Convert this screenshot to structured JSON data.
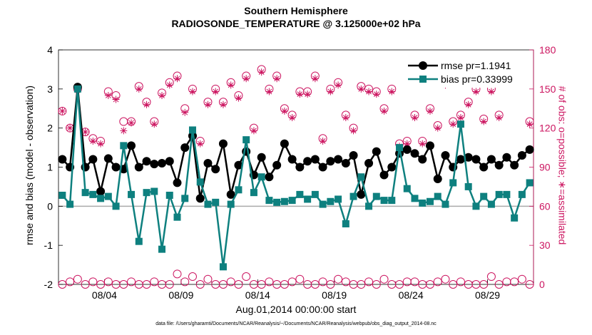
{
  "title_line1": "Southern Hemisphere",
  "title_line2": "RADIOSONDE_TEMPERATURE @ 3.125000e+02 hPa",
  "xlabel": "Aug.01,2014 00:00:00 start",
  "ylabel_left": "rmse and bias (model - observation)",
  "ylabel_right": "# of obs: o=possible; ∗=assimilated",
  "footnote": "data file: /Users/gharamti/Documents/NCAR/Reanalysis/~/Documents/NCAR/Reanalysis/webpub/obs_diag_output_2014-08.nc",
  "colors": {
    "rmse": "#000000",
    "bias": "#0e807f",
    "obs": "#cc1560",
    "zero_line": "#aaaaaa"
  },
  "chart_data": {
    "type": "line",
    "x_ticks": [
      "08/04",
      "08/09",
      "08/14",
      "08/19",
      "08/24",
      "08/29"
    ],
    "x_tick_days": [
      4,
      9,
      14,
      19,
      24,
      29
    ],
    "xlim": [
      1,
      32
    ],
    "y_left_ticks": [
      "-2",
      "-1",
      "0",
      "1",
      "2",
      "3",
      "4"
    ],
    "ylim_left": [
      -2,
      4
    ],
    "y_right_ticks": [
      "0",
      "30",
      "60",
      "90",
      "120",
      "150",
      "180"
    ],
    "ylim_right": [
      0,
      180
    ],
    "legend_location": "top-right",
    "series": [
      {
        "name": "rmse pr=1.1941",
        "axis": "left",
        "marker": "circle",
        "x": [
          1.25,
          1.75,
          2.25,
          2.75,
          3.25,
          3.75,
          4.25,
          4.75,
          5.25,
          5.75,
          6.25,
          6.75,
          7.25,
          7.75,
          8.25,
          8.75,
          9.25,
          9.75,
          10.25,
          10.75,
          11.25,
          11.75,
          12.25,
          12.75,
          13.25,
          13.75,
          14.25,
          14.75,
          15.25,
          15.75,
          16.25,
          16.75,
          17.25,
          17.75,
          18.25,
          18.75,
          19.25,
          19.75,
          20.25,
          20.75,
          21.25,
          21.75,
          22.25,
          22.75,
          23.25,
          23.75,
          24.25,
          24.75,
          25.25,
          25.75,
          26.25,
          26.75,
          27.25,
          27.75,
          28.25,
          28.75,
          29.25,
          29.75,
          30.25,
          30.75,
          31.25,
          31.75
        ],
        "y": [
          1.2,
          1.0,
          3.05,
          1.0,
          1.2,
          0.38,
          1.22,
          1.0,
          0.95,
          1.55,
          1.0,
          1.15,
          1.08,
          1.1,
          1.15,
          0.6,
          1.5,
          1.8,
          0.2,
          1.1,
          0.95,
          1.6,
          0.3,
          1.05,
          1.4,
          0.8,
          1.25,
          0.75,
          1.05,
          1.6,
          1.2,
          1.0,
          1.15,
          1.2,
          1.0,
          1.15,
          1.2,
          1.1,
          1.3,
          0.3,
          1.1,
          1.4,
          0.8,
          1.0,
          1.35,
          1.45,
          1.35,
          1.2,
          1.55,
          0.7,
          1.3,
          1.0,
          1.2,
          1.25,
          1.2,
          1.0,
          1.2,
          1.05,
          1.25,
          1.05,
          1.3,
          1.45
        ],
        "color": "#000000"
      },
      {
        "name": "bias pr=0.33999",
        "axis": "left",
        "marker": "square",
        "x": [
          1.25,
          1.75,
          2.25,
          2.75,
          3.25,
          3.75,
          4.25,
          4.75,
          5.25,
          5.75,
          6.25,
          6.75,
          7.25,
          7.75,
          8.25,
          8.75,
          9.25,
          9.75,
          10.25,
          10.75,
          11.25,
          11.75,
          12.25,
          12.75,
          13.25,
          13.75,
          14.25,
          14.75,
          15.25,
          15.75,
          16.25,
          16.75,
          17.25,
          17.75,
          18.25,
          18.75,
          19.25,
          19.75,
          20.25,
          20.75,
          21.25,
          21.75,
          22.25,
          22.75,
          23.25,
          23.75,
          24.25,
          24.75,
          25.25,
          25.75,
          26.25,
          26.75,
          27.25,
          27.75,
          28.25,
          28.75,
          29.25,
          29.75,
          30.25,
          30.75,
          31.25,
          31.75
        ],
        "y": [
          0.28,
          0.05,
          3.0,
          0.35,
          0.3,
          0.2,
          0.25,
          0.0,
          1.55,
          0.3,
          -0.9,
          0.35,
          0.38,
          -1.1,
          0.28,
          -0.28,
          0.2,
          1.95,
          0.62,
          0.05,
          0.1,
          -1.55,
          0.05,
          0.42,
          1.7,
          0.35,
          0.75,
          0.15,
          0.1,
          0.12,
          0.15,
          0.3,
          0.18,
          0.3,
          0.05,
          0.12,
          0.18,
          -0.45,
          0.25,
          0.75,
          0.0,
          0.25,
          0.15,
          0.15,
          1.5,
          0.45,
          0.2,
          0.08,
          0.12,
          0.25,
          0.05,
          0.6,
          2.1,
          0.5,
          0.0,
          0.25,
          0.05,
          0.3,
          0.3,
          -0.3,
          0.3,
          0.6
        ],
        "color": "#0e807f"
      },
      {
        "name": "possible",
        "axis": "right",
        "marker": "open-circle",
        "x": [
          1.25,
          1.75,
          2.25,
          2.75,
          3.25,
          3.75,
          4.25,
          4.75,
          5.25,
          5.75,
          6.25,
          6.75,
          7.25,
          7.75,
          8.25,
          8.75,
          9.25,
          9.75,
          10.25,
          10.75,
          11.25,
          11.75,
          12.25,
          12.75,
          13.25,
          13.75,
          14.25,
          14.75,
          15.25,
          15.75,
          16.25,
          16.75,
          17.25,
          17.75,
          18.25,
          18.75,
          19.25,
          19.75,
          20.25,
          20.75,
          21.25,
          21.75,
          22.25,
          22.75,
          23.25,
          23.75,
          24.25,
          24.75,
          25.25,
          25.75,
          26.25,
          26.75,
          27.25,
          27.75,
          28.25,
          28.75,
          29.25,
          29.75,
          30.25,
          30.75,
          31.25,
          31.75
        ],
        "y": [
          133,
          120,
          150,
          117,
          112,
          110,
          148,
          145,
          125,
          125,
          152,
          140,
          125,
          147,
          155,
          160,
          135,
          150,
          110,
          140,
          150,
          140,
          155,
          145,
          160,
          120,
          165,
          150,
          160,
          135,
          130,
          148,
          148,
          160,
          112,
          150,
          155,
          130,
          120,
          152,
          150,
          148,
          135,
          150,
          108,
          110,
          130,
          110,
          135,
          122,
          155,
          125,
          130,
          140,
          150,
          127,
          150,
          130,
          160,
          158,
          165,
          125
        ],
        "color": "#cc1560"
      },
      {
        "name": "assimilated",
        "axis": "right",
        "marker": "star",
        "x": [
          1.25,
          1.75,
          2.25,
          2.75,
          3.25,
          3.75,
          4.25,
          4.75,
          5.25,
          5.75,
          6.25,
          6.75,
          7.25,
          7.75,
          8.25,
          8.75,
          9.25,
          9.75,
          10.25,
          10.75,
          11.25,
          11.75,
          12.25,
          12.75,
          13.25,
          13.75,
          14.25,
          14.75,
          15.25,
          15.75,
          16.25,
          16.75,
          17.25,
          17.75,
          18.25,
          18.75,
          19.25,
          19.75,
          20.25,
          20.75,
          21.25,
          21.75,
          22.25,
          22.75,
          23.25,
          23.75,
          24.25,
          24.75,
          25.25,
          25.75,
          26.25,
          26.75,
          27.25,
          27.75,
          28.25,
          28.75,
          29.25,
          29.75,
          30.25,
          30.75,
          31.25,
          31.75
        ],
        "y": [
          133,
          120,
          150,
          117,
          110,
          108,
          145,
          142,
          118,
          124,
          150,
          138,
          123,
          145,
          153,
          158,
          132,
          148,
          108,
          138,
          148,
          138,
          153,
          143,
          158,
          118,
          163,
          148,
          158,
          133,
          128,
          146,
          146,
          158,
          110,
          148,
          153,
          128,
          118,
          150,
          148,
          146,
          133,
          148,
          106,
          108,
          128,
          108,
          133,
          120,
          153,
          123,
          128,
          138,
          148,
          125,
          148,
          128,
          158,
          156,
          163,
          123
        ],
        "color": "#cc1560"
      },
      {
        "name": "possible-bottom",
        "axis": "right",
        "marker": "open-circle",
        "x": [
          1.25,
          1.75,
          2.25,
          2.75,
          3.25,
          3.75,
          4.25,
          4.75,
          5.25,
          5.75,
          6.25,
          6.75,
          7.25,
          7.75,
          8.25,
          8.75,
          9.25,
          9.75,
          10.25,
          10.75,
          11.25,
          11.75,
          12.25,
          12.75,
          13.25,
          13.75,
          14.25,
          14.75,
          15.25,
          15.75,
          16.25,
          16.75,
          17.25,
          17.75,
          18.25,
          18.75,
          19.25,
          19.75,
          20.25,
          20.75,
          21.25,
          21.75,
          22.25,
          22.75,
          23.25,
          23.75,
          24.25,
          24.75,
          25.25,
          25.75,
          26.25,
          26.75,
          27.25,
          27.75,
          28.25,
          28.75,
          29.25,
          29.75,
          30.25,
          30.75,
          31.25,
          31.75
        ],
        "y": [
          0,
          2,
          4,
          0,
          2,
          0,
          2,
          0,
          0,
          2,
          0,
          0,
          2,
          0,
          0,
          8,
          2,
          6,
          0,
          4,
          0,
          0,
          2,
          0,
          6,
          0,
          0,
          2,
          0,
          0,
          2,
          4,
          0,
          0,
          2,
          0,
          4,
          2,
          0,
          0,
          2,
          0,
          4,
          0,
          0,
          2,
          2,
          0,
          0,
          2,
          4,
          0,
          2,
          0,
          0,
          0,
          6,
          0,
          2,
          2,
          4,
          0
        ],
        "color": "#cc1560"
      }
    ]
  }
}
